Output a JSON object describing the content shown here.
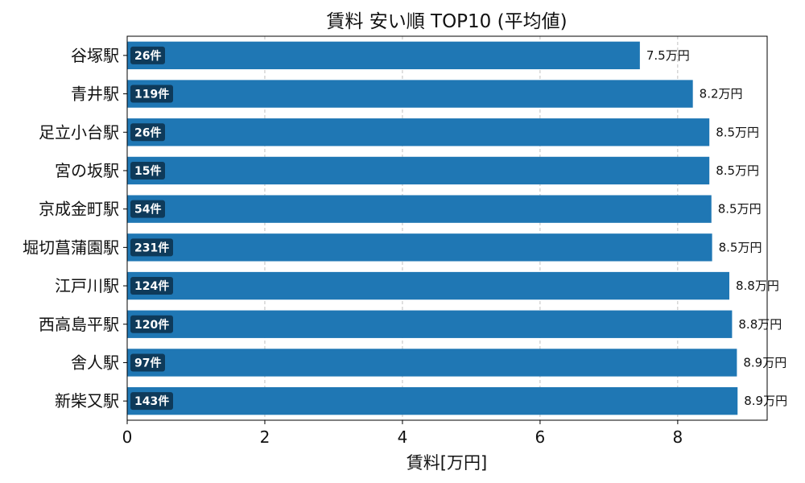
{
  "chart_data": {
    "type": "bar",
    "orientation": "horizontal",
    "title": "賃料 安い順 TOP10 (平均値)",
    "xlabel": "賃料[万円]",
    "ylabel": "",
    "xlim": [
      0,
      9.3
    ],
    "xticks": [
      0,
      2,
      4,
      6,
      8
    ],
    "grid": "x-dashed",
    "bar_color": "#1f77b4",
    "badge_color": "#0e3a5a",
    "categories": [
      "谷塚駅",
      "青井駅",
      "足立小台駅",
      "宮の坂駅",
      "京成金町駅",
      "堀切菖蒲園駅",
      "江戸川駅",
      "西高島平駅",
      "舎人駅",
      "新柴又駅"
    ],
    "values": [
      7.45,
      8.22,
      8.46,
      8.46,
      8.49,
      8.5,
      8.75,
      8.79,
      8.86,
      8.87
    ],
    "value_labels": [
      "7.5万円",
      "8.2万円",
      "8.5万円",
      "8.5万円",
      "8.5万円",
      "8.5万円",
      "8.8万円",
      "8.8万円",
      "8.9万円",
      "8.9万円"
    ],
    "count_labels": [
      "26件",
      "119件",
      "26件",
      "15件",
      "54件",
      "231件",
      "124件",
      "120件",
      "97件",
      "143件"
    ]
  }
}
